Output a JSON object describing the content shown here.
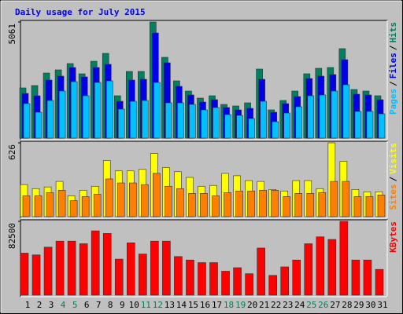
{
  "chart_data": [
    {
      "type": "bar",
      "title": "Daily usage for July 2015",
      "legend_separator": "/",
      "ylim": [
        0,
        5061
      ],
      "yticks": [
        5061
      ],
      "series": [
        {
          "name": "Hits",
          "color": "#008060",
          "values": [
            2189,
            2291,
            2838,
            2975,
            3249,
            2804,
            3351,
            3693,
            1847,
            2907,
            2907,
            5061,
            3522,
            2496,
            2052,
            1744,
            1847,
            1470,
            1402,
            1539,
            3010,
            1231,
            1641,
            2052,
            2804,
            3044,
            3078,
            3899,
            2120,
            2052,
            1847
          ]
        },
        {
          "name": "Files",
          "color": "#0000e8",
          "values": [
            1949,
            1847,
            2531,
            2702,
            3078,
            2667,
            3078,
            3215,
            1607,
            2531,
            2565,
            4582,
            3283,
            2257,
            1881,
            1573,
            1676,
            1334,
            1231,
            1300,
            2565,
            1129,
            1505,
            1813,
            2599,
            2702,
            2770,
            3420,
            1915,
            1881,
            1676
          ]
        },
        {
          "name": "Pages",
          "color": "#00c0ff",
          "values": [
            1505,
            1129,
            1641,
            2052,
            2462,
            1847,
            2428,
            2496,
            1265,
            1607,
            1641,
            2428,
            1539,
            1539,
            1470,
            1231,
            1334,
            1026,
            992,
            855,
            1607,
            718,
            1094,
            1368,
            1847,
            1881,
            2052,
            2326,
            1163,
            1163,
            1060
          ]
        }
      ]
    },
    {
      "type": "bar",
      "legend_separator": "/",
      "ylim": [
        0,
        626
      ],
      "yticks": [
        626
      ],
      "series": [
        {
          "name": "Visits",
          "color": "#ffff00",
          "values": [
            272,
            238,
            252,
            299,
            177,
            224,
            258,
            476,
            388,
            388,
            401,
            537,
            415,
            381,
            333,
            258,
            265,
            367,
            347,
            306,
            299,
            231,
            218,
            306,
            306,
            238,
            626,
            469,
            231,
            211,
            211
          ]
        },
        {
          "name": "Sites",
          "color": "#ff8000",
          "values": [
            177,
            177,
            204,
            224,
            136,
            170,
            190,
            320,
            286,
            286,
            272,
            367,
            258,
            238,
            197,
            197,
            177,
            204,
            218,
            218,
            224,
            224,
            170,
            197,
            197,
            204,
            299,
            299,
            170,
            170,
            184
          ]
        }
      ]
    },
    {
      "type": "bar",
      "ylim": [
        0,
        82500
      ],
      "yticks": [
        82500
      ],
      "categories": [
        "1",
        "2",
        "3",
        "4",
        "5",
        "6",
        "7",
        "8",
        "9",
        "10",
        "11",
        "12",
        "13",
        "14",
        "15",
        "16",
        "17",
        "18",
        "19",
        "20",
        "21",
        "22",
        "23",
        "24",
        "25",
        "26",
        "27",
        "28",
        "29",
        "30",
        "31"
      ],
      "category_colors": [
        "#000000",
        "#000000",
        "#000000",
        "#00805c",
        "#00805c",
        "#000000",
        "#000000",
        "#000000",
        "#000000",
        "#000000",
        "#00805c",
        "#00805c",
        "#000000",
        "#000000",
        "#000000",
        "#000000",
        "#000000",
        "#00805c",
        "#00805c",
        "#000000",
        "#000000",
        "#000000",
        "#000000",
        "#000000",
        "#00805c",
        "#00805c",
        "#000000",
        "#000000",
        "#000000",
        "#000000",
        "#000000"
      ],
      "series": [
        {
          "name": "KBytes",
          "color": "#ff0000",
          "values": [
            47000,
            45000,
            53700,
            60400,
            60400,
            57500,
            71900,
            69000,
            40300,
            58500,
            46000,
            60400,
            60400,
            43200,
            39300,
            36400,
            36400,
            26800,
            30700,
            24000,
            52700,
            22100,
            31600,
            39300,
            57500,
            65200,
            62300,
            82500,
            39300,
            39300,
            28800
          ]
        }
      ]
    }
  ]
}
